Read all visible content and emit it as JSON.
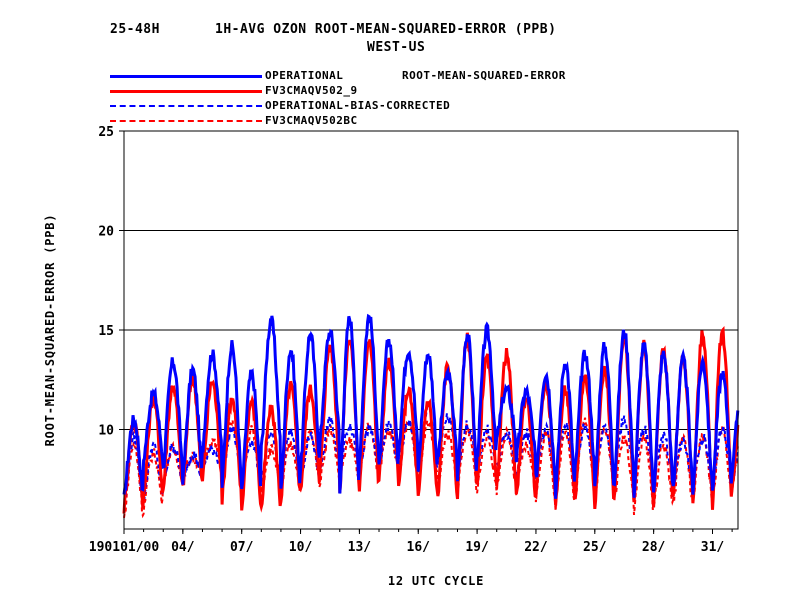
{
  "header": {
    "lead": "25-48H",
    "title": "1H-AVG OZON ROOT-MEAN-SQUARED-ERROR (PPB)",
    "region": "WEST-US"
  },
  "legend": {
    "metric": "ROOT-MEAN-SQUARED-ERROR",
    "items": [
      {
        "name": "OPERATIONAL",
        "color": "#0000ff",
        "style": "solid"
      },
      {
        "name": "FV3CMAQV502_9",
        "color": "#ff0000",
        "style": "solid"
      },
      {
        "name": "OPERATIONAL-BIAS-CORRECTED",
        "color": "#0000ff",
        "style": "dashed"
      },
      {
        "name": "FV3CMAQV502BC",
        "color": "#ff0000",
        "style": "dashed"
      }
    ]
  },
  "chart_data": {
    "type": "line",
    "xlabel": "12 UTC CYCLE",
    "ylabel": "ROOT-MEAN-SQUARED-ERROR (PPB)",
    "ylim": [
      5,
      25
    ],
    "yticks": [
      10,
      15,
      20,
      25
    ],
    "xlim": [
      1,
      32.3
    ],
    "xticks": [
      {
        "day": 1,
        "label": "190101/00"
      },
      {
        "day": 4,
        "label": "04/"
      },
      {
        "day": 7,
        "label": "07/"
      },
      {
        "day": 10,
        "label": "10/"
      },
      {
        "day": 13,
        "label": "13/"
      },
      {
        "day": 16,
        "label": "16/"
      },
      {
        "day": 19,
        "label": "19/"
      },
      {
        "day": 22,
        "label": "22/"
      },
      {
        "day": 25,
        "label": "25/"
      },
      {
        "day": 28,
        "label": "28/"
      },
      {
        "day": 31,
        "label": "31/"
      }
    ],
    "grid": "horizontal at 10, 15, 20",
    "days": [
      1,
      2,
      3,
      4,
      5,
      6,
      7,
      8,
      9,
      10,
      11,
      12,
      13,
      14,
      15,
      16,
      17,
      18,
      19,
      20,
      21,
      22,
      23,
      24,
      25,
      26,
      27,
      28,
      29,
      30,
      31,
      32
    ],
    "series": [
      {
        "name": "OPERATIONAL",
        "color": "#0000ff",
        "dash": false,
        "peaks": [
          10.5,
          11.8,
          13.4,
          13.0,
          13.8,
          14.2,
          12.8,
          15.5,
          14.0,
          14.8,
          14.9,
          15.6,
          15.7,
          14.5,
          14.0,
          13.8,
          12.8,
          14.8,
          15.0,
          12.0,
          11.9,
          12.8,
          13.4,
          13.8,
          14.2,
          14.9,
          14.2,
          13.8,
          13.5,
          13.4,
          12.8,
          12.0
        ],
        "troughs": [
          6.5,
          8.5,
          8.0,
          7.5,
          9.0,
          7.2,
          6.8,
          9.0,
          7.0,
          8.0,
          9.5,
          6.8,
          8.5,
          8.0,
          9.0,
          8.0,
          8.5,
          7.5,
          8.5,
          9.5,
          8.5,
          7.5,
          6.8,
          8.0,
          7.0,
          7.5,
          6.8,
          7.0,
          7.0,
          7.0,
          7.0,
          8.0
        ]
      },
      {
        "name": "FV3CMAQV502_9",
        "color": "#ff0000",
        "dash": false,
        "peaks": [
          10.4,
          11.6,
          12.2,
          12.6,
          12.4,
          11.5,
          11.4,
          11.0,
          12.2,
          12.0,
          14.2,
          14.6,
          14.6,
          13.4,
          12.0,
          11.4,
          13.2,
          14.6,
          13.6,
          13.8,
          11.6,
          12.4,
          12.0,
          12.7,
          13.0,
          14.6,
          14.2,
          14.0,
          13.6,
          14.8,
          14.9,
          11.0
        ],
        "troughs": [
          6.0,
          6.5,
          7.0,
          7.0,
          7.5,
          6.5,
          6.0,
          6.0,
          6.5,
          7.0,
          8.0,
          7.0,
          7.0,
          7.5,
          7.0,
          6.5,
          6.5,
          6.8,
          7.0,
          7.0,
          6.5,
          6.5,
          6.2,
          6.5,
          6.2,
          6.5,
          6.2,
          6.2,
          6.5,
          6.2,
          6.2,
          7.0
        ]
      },
      {
        "name": "OPERATIONAL-BIAS-CORRECTED",
        "color": "#0000ff",
        "dash": true,
        "peaks": [
          9.6,
          9.2,
          9.2,
          8.8,
          9.0,
          10.0,
          9.4,
          9.6,
          9.8,
          9.6,
          10.4,
          10.2,
          10.0,
          10.2,
          10.4,
          11.0,
          10.6,
          10.2,
          10.0,
          9.8,
          9.8,
          10.0,
          10.2,
          10.2,
          10.2,
          10.6,
          10.0,
          9.6,
          9.4,
          9.6,
          10.0,
          9.4
        ],
        "troughs": [
          6.0,
          6.5,
          7.2,
          7.5,
          8.0,
          7.5,
          7.2,
          7.5,
          7.5,
          7.5,
          8.0,
          8.0,
          8.0,
          8.0,
          8.0,
          8.0,
          8.2,
          8.0,
          8.0,
          8.0,
          7.6,
          7.5,
          7.2,
          7.2,
          7.2,
          7.5,
          7.5,
          7.5,
          7.2,
          7.2,
          7.2,
          7.5
        ]
      },
      {
        "name": "FV3CMAQV502BC",
        "color": "#ff0000",
        "dash": true,
        "peaks": [
          9.2,
          8.8,
          9.0,
          8.6,
          9.4,
          10.2,
          10.0,
          9.0,
          9.2,
          9.8,
          10.0,
          9.4,
          10.2,
          10.0,
          10.4,
          10.2,
          9.8,
          10.0,
          9.6,
          9.8,
          9.2,
          9.8,
          10.0,
          10.6,
          10.2,
          9.6,
          9.6,
          9.2,
          9.6,
          9.6,
          10.0,
          9.6
        ],
        "troughs": [
          5.5,
          6.0,
          7.5,
          7.8,
          8.0,
          7.5,
          7.0,
          7.0,
          7.0,
          7.2,
          7.5,
          7.5,
          7.5,
          8.0,
          7.5,
          7.5,
          7.0,
          7.0,
          7.0,
          7.0,
          6.8,
          6.5,
          6.0,
          6.5,
          6.5,
          6.5,
          6.0,
          6.2,
          6.2,
          6.5,
          6.5,
          7.0
        ]
      }
    ]
  }
}
